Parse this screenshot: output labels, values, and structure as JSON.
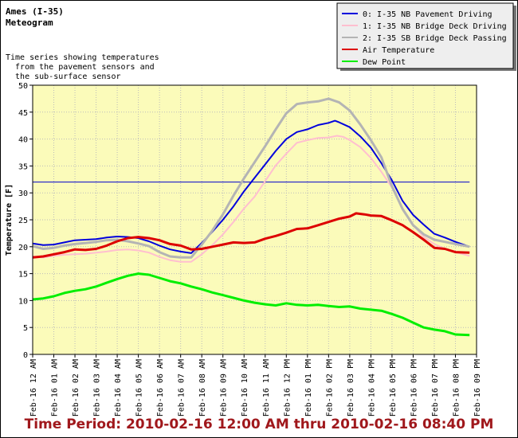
{
  "header": {
    "station": "Ames (I-35)",
    "subtitle": "Meteogram",
    "description": [
      "Time series showing temperatures",
      "  from the pavement sensors and",
      "  the sub-surface sensor"
    ]
  },
  "footer": {
    "time_period": "Time Period: 2010-02-16 12:00 AM thru 2010-02-16 08:40 PM"
  },
  "colors": {
    "plot_background": "#fbfbba",
    "grid": "#bbbbbb",
    "freezing_line": "#0000cc"
  },
  "chart_data": {
    "type": "line",
    "title": "",
    "xlabel": "",
    "ylabel": "Temperature [F]",
    "ylim": [
      0,
      50
    ],
    "yticks": [
      0,
      5,
      10,
      15,
      20,
      25,
      30,
      35,
      40,
      45,
      50
    ],
    "xlim": [
      0,
      21
    ],
    "x_units": "hours since 2010-02-16 00:00",
    "xtick_labels": [
      "Feb-16 12 AM",
      "Feb-16 01 AM",
      "Feb-16 02 AM",
      "Feb-16 03 AM",
      "Feb-16 04 AM",
      "Feb-16 05 AM",
      "Feb-16 06 AM",
      "Feb-16 07 AM",
      "Feb-16 08 AM",
      "Feb-16 09 AM",
      "Feb-16 10 AM",
      "Feb-16 11 AM",
      "Feb-16 12 PM",
      "Feb-16 01 PM",
      "Feb-16 02 PM",
      "Feb-16 03 PM",
      "Feb-16 04 PM",
      "Feb-16 05 PM",
      "Feb-16 06 PM",
      "Feb-16 07 PM",
      "Feb-16 08 PM",
      "Feb-16 09 PM"
    ],
    "grid": true,
    "legend_position": "top-right",
    "reference_line": {
      "y": 32,
      "x_range": [
        0,
        20.67
      ],
      "color": "#0000cc"
    },
    "series": [
      {
        "name": "0: I-35 NB Pavement Driving",
        "color": "#0000dd",
        "width": 2,
        "points": [
          [
            0,
            20.6
          ],
          [
            0.5,
            20.3
          ],
          [
            1,
            20.4
          ],
          [
            1.5,
            20.8
          ],
          [
            2,
            21.2
          ],
          [
            2.5,
            21.3
          ],
          [
            3,
            21.4
          ],
          [
            3.5,
            21.7
          ],
          [
            4,
            21.9
          ],
          [
            4.5,
            21.8
          ],
          [
            5,
            21.6
          ],
          [
            5.5,
            21.0
          ],
          [
            6,
            20.2
          ],
          [
            6.5,
            19.5
          ],
          [
            7,
            19.1
          ],
          [
            7.5,
            18.8
          ],
          [
            8,
            20.7
          ],
          [
            8.5,
            22.8
          ],
          [
            9,
            25.0
          ],
          [
            9.5,
            27.5
          ],
          [
            10,
            30.3
          ],
          [
            10.5,
            32.8
          ],
          [
            11,
            35.3
          ],
          [
            11.5,
            37.8
          ],
          [
            12,
            40.0
          ],
          [
            12.5,
            41.3
          ],
          [
            13,
            41.8
          ],
          [
            13.5,
            42.6
          ],
          [
            14,
            43.0
          ],
          [
            14.3,
            43.4
          ],
          [
            14.5,
            43.1
          ],
          [
            15,
            42.2
          ],
          [
            15.5,
            40.5
          ],
          [
            16,
            38.4
          ],
          [
            16.5,
            35.5
          ],
          [
            17,
            32.3
          ],
          [
            17.5,
            28.5
          ],
          [
            18,
            25.9
          ],
          [
            18.5,
            24.1
          ],
          [
            19,
            22.4
          ],
          [
            19.5,
            21.7
          ],
          [
            20,
            20.9
          ],
          [
            20.67,
            20.0
          ]
        ]
      },
      {
        "name": "1: I-35 NB Bridge Deck Driving",
        "color": "#ffbfcf",
        "width": 2,
        "points": [
          [
            0,
            18.2
          ],
          [
            0.5,
            18.0
          ],
          [
            1,
            18.3
          ],
          [
            1.5,
            18.5
          ],
          [
            2,
            18.6
          ],
          [
            2.5,
            18.7
          ],
          [
            3,
            18.9
          ],
          [
            3.5,
            19.1
          ],
          [
            4,
            19.4
          ],
          [
            4.5,
            19.5
          ],
          [
            5,
            19.3
          ],
          [
            5.5,
            18.9
          ],
          [
            6,
            18.1
          ],
          [
            6.5,
            17.5
          ],
          [
            7,
            17.2
          ],
          [
            7.5,
            17.2
          ],
          [
            8,
            18.6
          ],
          [
            8.5,
            20.3
          ],
          [
            9,
            22.3
          ],
          [
            9.5,
            24.6
          ],
          [
            10,
            27.1
          ],
          [
            10.5,
            29.3
          ],
          [
            11,
            32.2
          ],
          [
            11.5,
            35.1
          ],
          [
            12,
            37.3
          ],
          [
            12.5,
            39.3
          ],
          [
            13,
            39.8
          ],
          [
            13.5,
            40.2
          ],
          [
            14,
            40.3
          ],
          [
            14.4,
            40.6
          ],
          [
            14.7,
            40.4
          ],
          [
            15,
            39.8
          ],
          [
            15.5,
            38.5
          ],
          [
            16,
            36.5
          ],
          [
            16.5,
            33.9
          ],
          [
            17,
            31.0
          ],
          [
            17.5,
            27.1
          ],
          [
            18,
            24.0
          ],
          [
            18.5,
            21.8
          ],
          [
            19,
            20.5
          ],
          [
            19.5,
            19.6
          ],
          [
            20,
            19.0
          ],
          [
            20.67,
            18.3
          ]
        ]
      },
      {
        "name": "2: I-35 SB Bridge Deck Passing",
        "color": "#b4b4b4",
        "width": 3,
        "points": [
          [
            0,
            20.1
          ],
          [
            0.5,
            19.6
          ],
          [
            1,
            19.8
          ],
          [
            1.5,
            20.2
          ],
          [
            2,
            20.5
          ],
          [
            2.5,
            20.7
          ],
          [
            3,
            20.9
          ],
          [
            3.5,
            21.2
          ],
          [
            4,
            21.3
          ],
          [
            4.5,
            21.0
          ],
          [
            5,
            20.6
          ],
          [
            5.5,
            20.1
          ],
          [
            6,
            19.0
          ],
          [
            6.5,
            18.2
          ],
          [
            7,
            18.0
          ],
          [
            7.5,
            18.0
          ],
          [
            8,
            20.4
          ],
          [
            8.5,
            23.0
          ],
          [
            9,
            26.0
          ],
          [
            9.5,
            29.5
          ],
          [
            10,
            32.7
          ],
          [
            10.5,
            35.7
          ],
          [
            11,
            38.7
          ],
          [
            11.5,
            41.8
          ],
          [
            12,
            44.8
          ],
          [
            12.5,
            46.5
          ],
          [
            13,
            46.8
          ],
          [
            13.5,
            47.0
          ],
          [
            14,
            47.5
          ],
          [
            14.5,
            46.8
          ],
          [
            15,
            45.3
          ],
          [
            15.5,
            42.7
          ],
          [
            16,
            39.8
          ],
          [
            16.5,
            36.6
          ],
          [
            17,
            31.2
          ],
          [
            17.5,
            27.0
          ],
          [
            18,
            24.0
          ],
          [
            18.5,
            22.3
          ],
          [
            19,
            21.3
          ],
          [
            19.5,
            20.9
          ],
          [
            20,
            20.5
          ],
          [
            20.67,
            20.0
          ]
        ]
      },
      {
        "name": "Air Temperature",
        "color": "#dd0000",
        "width": 3,
        "points": [
          [
            0,
            18.0
          ],
          [
            0.5,
            18.2
          ],
          [
            1,
            18.6
          ],
          [
            1.5,
            19.0
          ],
          [
            2,
            19.5
          ],
          [
            2.5,
            19.4
          ],
          [
            3,
            19.6
          ],
          [
            3.5,
            20.2
          ],
          [
            4,
            21.0
          ],
          [
            4.5,
            21.6
          ],
          [
            5,
            21.8
          ],
          [
            5.5,
            21.6
          ],
          [
            6,
            21.2
          ],
          [
            6.5,
            20.5
          ],
          [
            7,
            20.2
          ],
          [
            7.5,
            19.5
          ],
          [
            8,
            19.6
          ],
          [
            8.5,
            20.0
          ],
          [
            9,
            20.4
          ],
          [
            9.5,
            20.8
          ],
          [
            10,
            20.7
          ],
          [
            10.5,
            20.8
          ],
          [
            11,
            21.5
          ],
          [
            11.5,
            22.0
          ],
          [
            12,
            22.6
          ],
          [
            12.5,
            23.3
          ],
          [
            13,
            23.4
          ],
          [
            13.5,
            24.0
          ],
          [
            14,
            24.6
          ],
          [
            14.5,
            25.2
          ],
          [
            15,
            25.6
          ],
          [
            15.3,
            26.2
          ],
          [
            15.7,
            26.0
          ],
          [
            16,
            25.8
          ],
          [
            16.5,
            25.7
          ],
          [
            17,
            24.9
          ],
          [
            17.5,
            24.0
          ],
          [
            18,
            22.7
          ],
          [
            18.5,
            21.3
          ],
          [
            19,
            19.8
          ],
          [
            19.5,
            19.6
          ],
          [
            20,
            19.0
          ],
          [
            20.67,
            18.9
          ]
        ]
      },
      {
        "name": "Dew Point",
        "color": "#00ee00",
        "width": 3,
        "points": [
          [
            0,
            10.2
          ],
          [
            0.5,
            10.4
          ],
          [
            1,
            10.8
          ],
          [
            1.5,
            11.4
          ],
          [
            2,
            11.8
          ],
          [
            2.5,
            12.1
          ],
          [
            3,
            12.6
          ],
          [
            3.5,
            13.3
          ],
          [
            4,
            14.0
          ],
          [
            4.5,
            14.6
          ],
          [
            5,
            15.0
          ],
          [
            5.5,
            14.8
          ],
          [
            6,
            14.2
          ],
          [
            6.5,
            13.6
          ],
          [
            7,
            13.2
          ],
          [
            7.5,
            12.6
          ],
          [
            8,
            12.1
          ],
          [
            8.5,
            11.5
          ],
          [
            9,
            11.0
          ],
          [
            9.5,
            10.5
          ],
          [
            10,
            10.0
          ],
          [
            10.5,
            9.6
          ],
          [
            11,
            9.3
          ],
          [
            11.5,
            9.1
          ],
          [
            12,
            9.5
          ],
          [
            12.5,
            9.2
          ],
          [
            13,
            9.1
          ],
          [
            13.5,
            9.2
          ],
          [
            14,
            9.0
          ],
          [
            14.5,
            8.8
          ],
          [
            15,
            8.9
          ],
          [
            15.5,
            8.5
          ],
          [
            16,
            8.3
          ],
          [
            16.5,
            8.1
          ],
          [
            17,
            7.5
          ],
          [
            17.5,
            6.8
          ],
          [
            18,
            5.9
          ],
          [
            18.5,
            5.0
          ],
          [
            19,
            4.6
          ],
          [
            19.5,
            4.3
          ],
          [
            20,
            3.7
          ],
          [
            20.67,
            3.6
          ]
        ]
      }
    ]
  }
}
